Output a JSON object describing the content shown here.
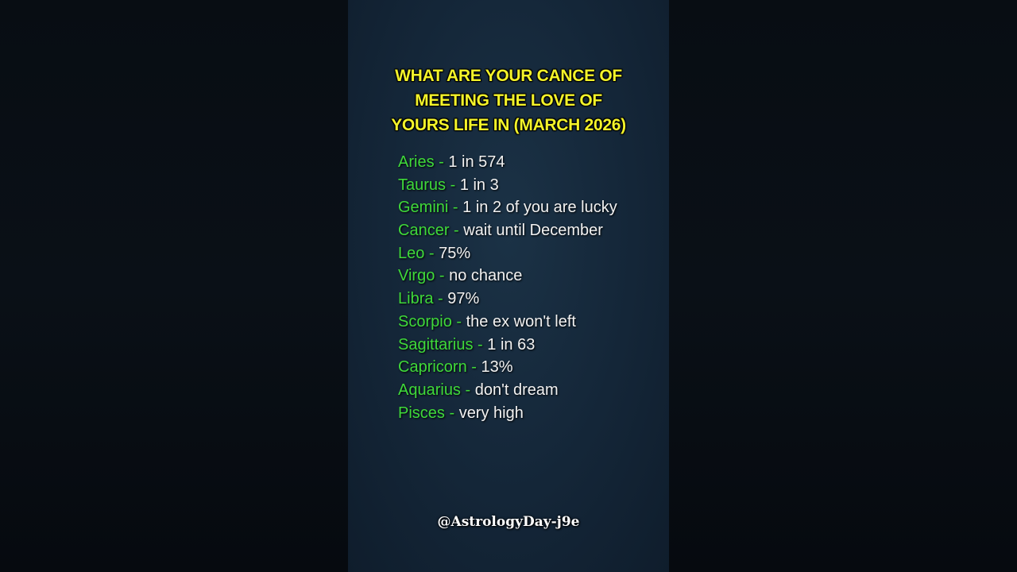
{
  "title": "WHAT ARE YOUR CANCE OF MEETING THE LOVE OF YOURS LIFE IN (MARCH 2026)",
  "title_lines": [
    "WHAT ARE YOUR CANCE OF",
    "MEETING THE LOVE OF",
    "YOURS LIFE IN (MARCH 2026)"
  ],
  "separator": " - ",
  "items": [
    {
      "sign": "Aries",
      "value": "1 in 574"
    },
    {
      "sign": "Taurus",
      "value": "1 in 3"
    },
    {
      "sign": "Gemini",
      "value": "1 in 2 of you are lucky"
    },
    {
      "sign": "Cancer",
      "value": "wait until December"
    },
    {
      "sign": "Leo",
      "value": "75%"
    },
    {
      "sign": "Virgo",
      "value": "no chance"
    },
    {
      "sign": "Libra",
      "value": "97%"
    },
    {
      "sign": "Scorpio",
      "value": "the ex won't left"
    },
    {
      "sign": "Sagittarius",
      "value": "1 in 63"
    },
    {
      "sign": "Capricorn",
      "value": "13%"
    },
    {
      "sign": "Aquarius",
      "value": "don't dream"
    },
    {
      "sign": "Pisces",
      "value": "very high"
    }
  ],
  "watermark": "@AstrologyDay-j9e",
  "colors": {
    "title": "#f3f32a",
    "sign": "#3fd93a",
    "value": "#f2f2f2",
    "panel": "#142638"
  }
}
